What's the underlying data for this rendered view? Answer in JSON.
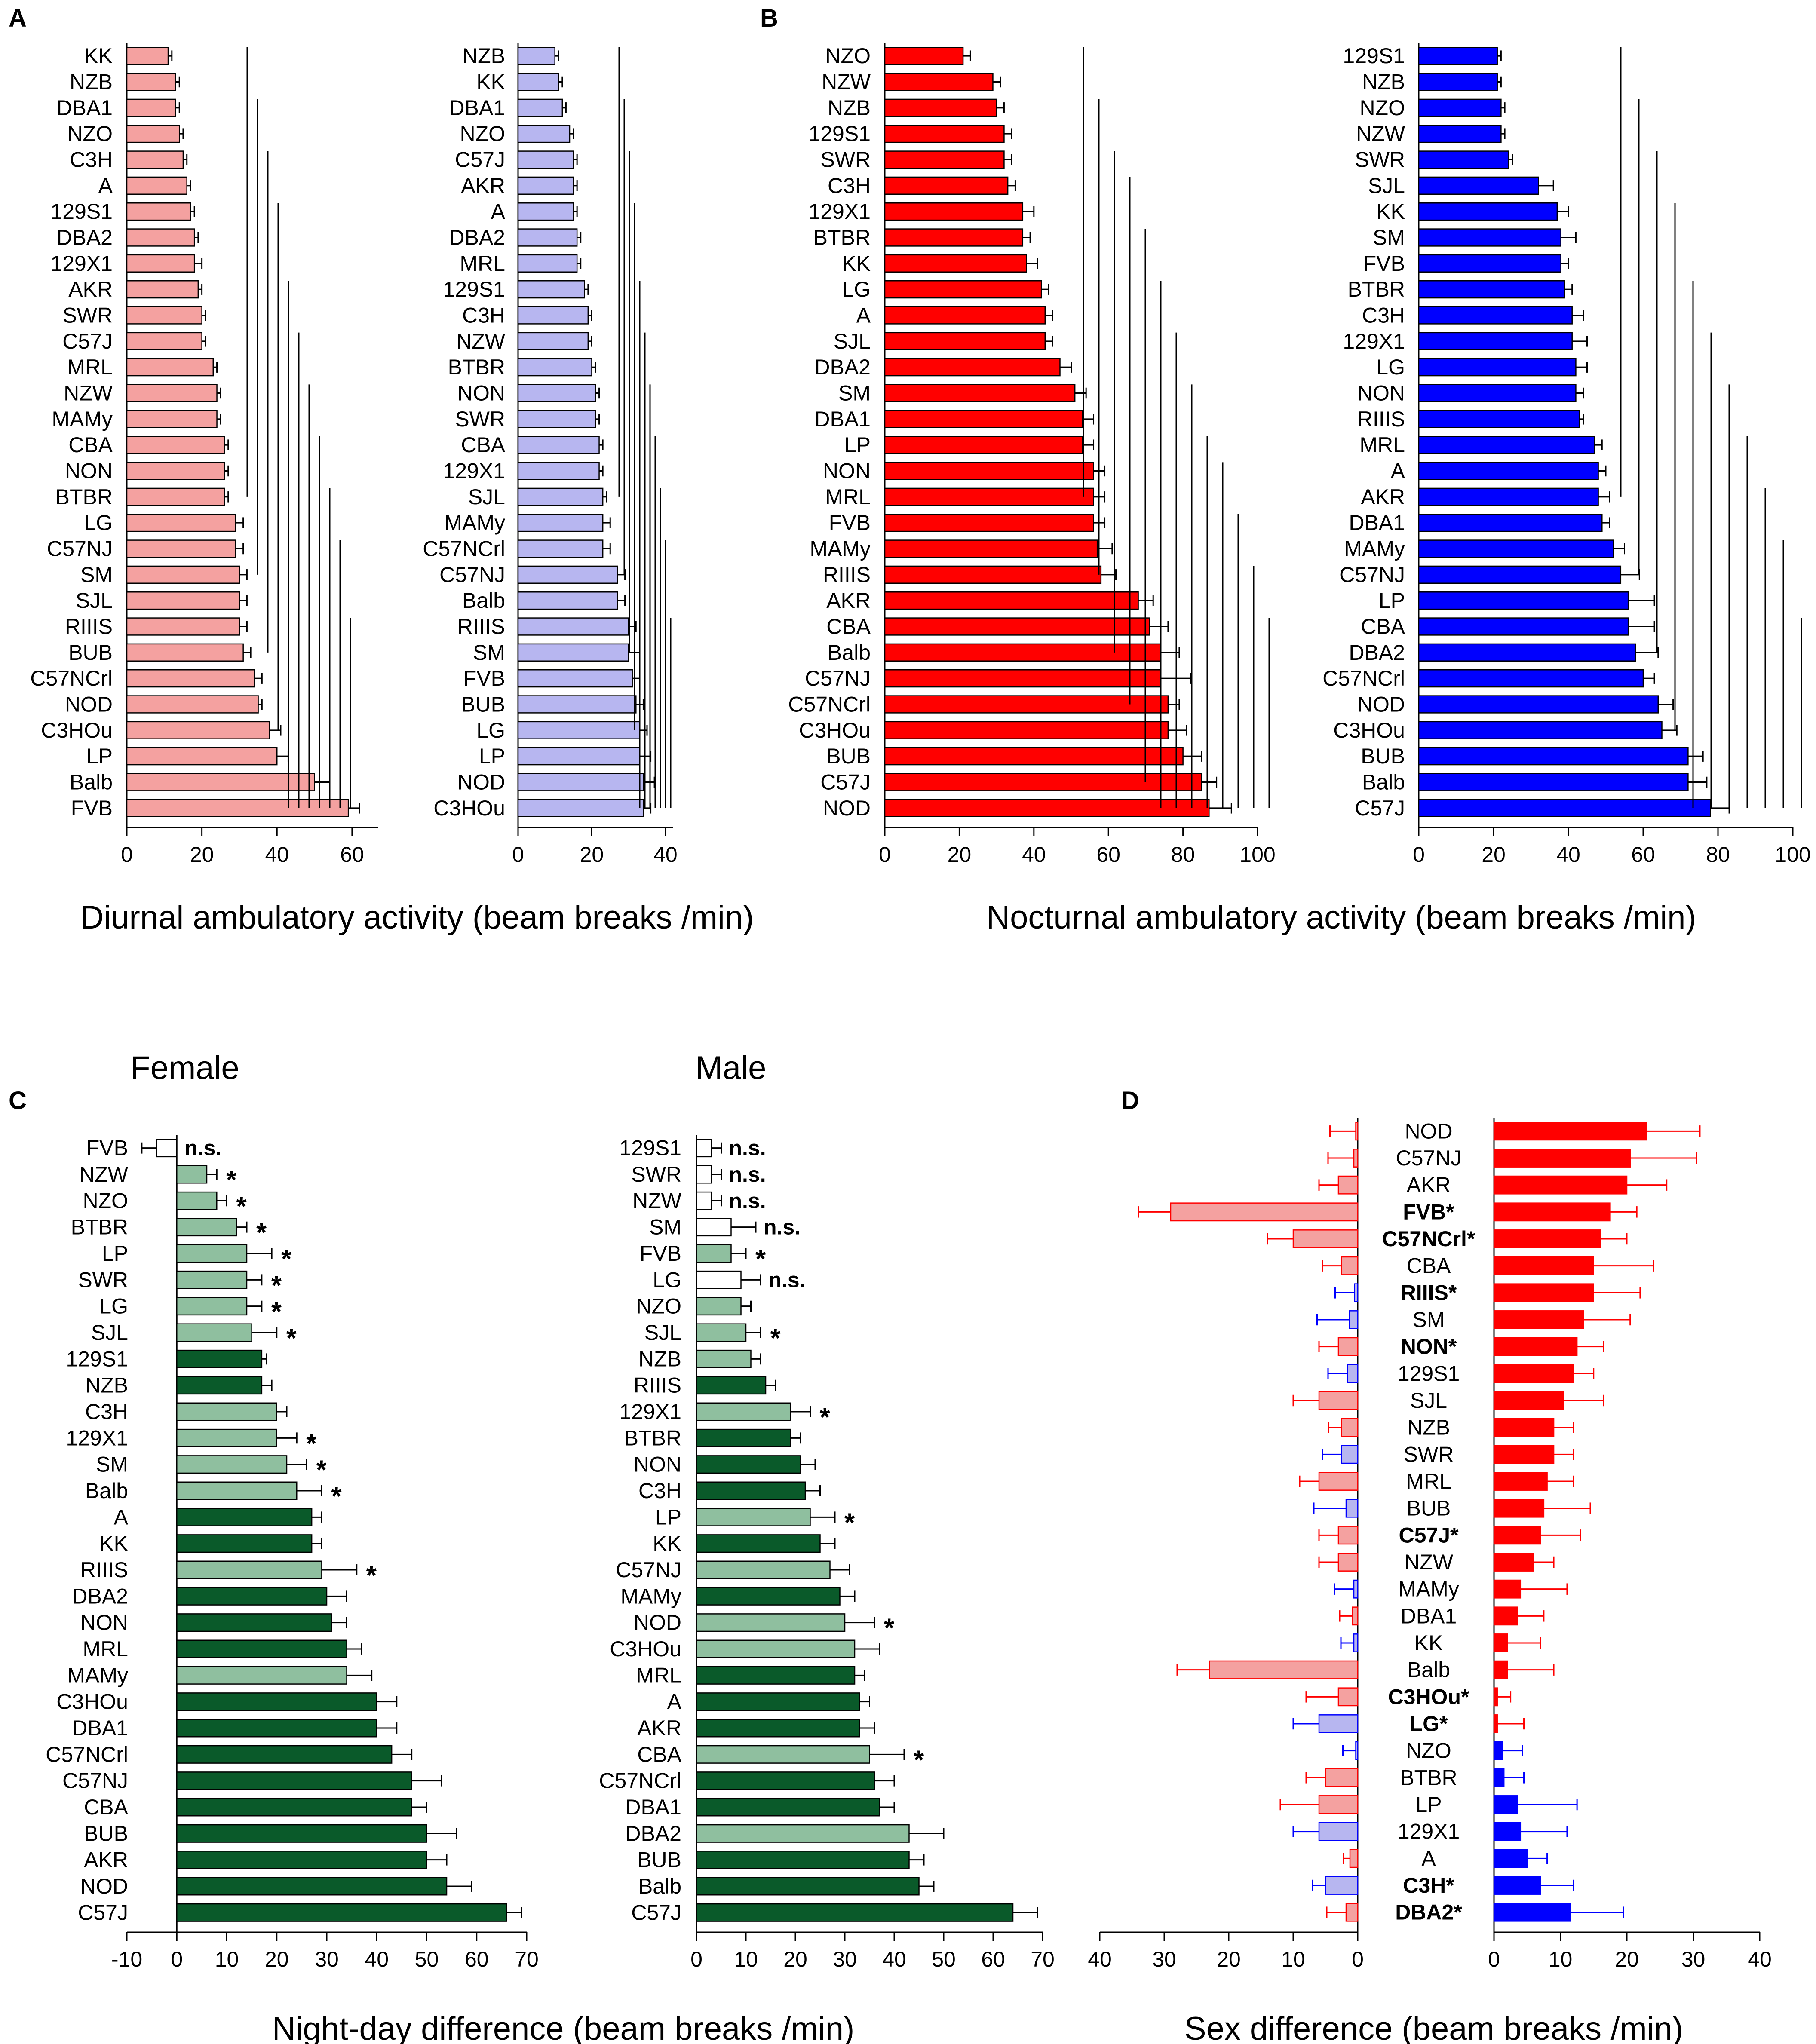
{
  "colors": {
    "female": "#f4a1a0",
    "male": "#b7b6f0",
    "female_dark": "#ff0000",
    "male_dark": "#0000ff",
    "green_dark": "#0a5a2a",
    "green_light": "#8fbf9f"
  },
  "figure": {
    "panel_labels": [
      "A",
      "B",
      "C",
      "D"
    ],
    "axis_titles": {
      "diurnal": "Diurnal ambulatory activity (beam breaks /min)",
      "nocturnal": "Nocturnal ambulatory activity (beam breaks /min)",
      "night_day": "Night-day difference (beam breaks /min)",
      "sex": "Sex difference (beam breaks /min)"
    },
    "headers": {
      "female": "Female",
      "male": "Male"
    }
  },
  "chart_data": [
    {
      "id": "A-female",
      "panel": "A",
      "type": "bar",
      "orientation": "horizontal",
      "color": "female",
      "xlim": [
        0,
        67
      ],
      "ticks": [
        0,
        20,
        40,
        60
      ],
      "categories": [
        "KK",
        "NZB",
        "DBA1",
        "NZO",
        "C3H",
        "A",
        "129S1",
        "DBA2",
        "129X1",
        "AKR",
        "SWR",
        "C57J",
        "MRL",
        "NZW",
        "MAMy",
        "CBA",
        "NON",
        "BTBR",
        "LG",
        "C57NJ",
        "SM",
        "SJL",
        "RIIIS",
        "BUB",
        "C57NCrl",
        "NOD",
        "C3HOu",
        "LP",
        "Balb",
        "FVB"
      ],
      "values": [
        11,
        13,
        13,
        14,
        15,
        16,
        17,
        18,
        18,
        19,
        20,
        20,
        23,
        24,
        24,
        26,
        26,
        26,
        29,
        29,
        30,
        30,
        30,
        31,
        34,
        35,
        38,
        40,
        50,
        59
      ],
      "errors": [
        1,
        1,
        1,
        1,
        1,
        1,
        1,
        1,
        2,
        1,
        1,
        1,
        1,
        1,
        1,
        1,
        1,
        1,
        2,
        2,
        2,
        2,
        2,
        2,
        2,
        1,
        3,
        3,
        4,
        3
      ],
      "significance_bracket_count": 11
    },
    {
      "id": "A-male",
      "panel": "A",
      "type": "bar",
      "orientation": "horizontal",
      "color": "male",
      "xlim": [
        0,
        42
      ],
      "ticks": [
        0,
        20,
        40
      ],
      "categories": [
        "NZB",
        "KK",
        "DBA1",
        "NZO",
        "C57J",
        "AKR",
        "A",
        "DBA2",
        "MRL",
        "129S1",
        "C3H",
        "NZW",
        "BTBR",
        "NON",
        "SWR",
        "CBA",
        "129X1",
        "SJL",
        "MAMy",
        "C57NCrl",
        "C57NJ",
        "Balb",
        "RIIIS",
        "SM",
        "FVB",
        "BUB",
        "LG",
        "LP",
        "NOD",
        "C3HOu"
      ],
      "values": [
        10,
        11,
        12,
        14,
        15,
        15,
        15,
        16,
        16,
        18,
        19,
        19,
        20,
        21,
        21,
        22,
        22,
        23,
        23,
        23,
        27,
        27,
        30,
        30,
        31,
        32,
        33,
        33,
        34,
        34
      ],
      "errors": [
        1,
        1,
        1,
        1,
        1,
        1,
        1,
        1,
        1,
        1,
        1,
        1,
        1,
        1,
        1,
        1,
        1,
        1,
        2,
        2,
        2,
        2,
        2,
        3,
        2,
        2,
        2,
        3,
        3,
        2
      ],
      "significance_bracket_count": 11
    },
    {
      "id": "B-female",
      "panel": "B",
      "type": "bar",
      "orientation": "horizontal",
      "color": "female_dark",
      "xlim": [
        0,
        100
      ],
      "ticks": [
        0,
        20,
        40,
        60,
        80,
        100
      ],
      "categories": [
        "NZO",
        "NZW",
        "NZB",
        "129S1",
        "SWR",
        "C3H",
        "129X1",
        "BTBR",
        "KK",
        "LG",
        "A",
        "SJL",
        "DBA2",
        "SM",
        "DBA1",
        "LP",
        "NON",
        "MRL",
        "FVB",
        "MAMy",
        "RIIIS",
        "AKR",
        "CBA",
        "Balb",
        "C57NJ",
        "C57NCrl",
        "C3HOu",
        "BUB",
        "C57J",
        "NOD"
      ],
      "values": [
        21,
        29,
        30,
        32,
        32,
        33,
        37,
        37,
        38,
        42,
        43,
        43,
        47,
        51,
        53,
        53,
        56,
        56,
        56,
        57,
        58,
        68,
        71,
        74,
        74,
        76,
        76,
        80,
        85,
        87
      ],
      "errors": [
        2,
        2,
        2,
        2,
        2,
        2,
        3,
        2,
        3,
        2,
        2,
        2,
        3,
        3,
        3,
        3,
        3,
        3,
        3,
        4,
        4,
        4,
        5,
        5,
        8,
        3,
        5,
        5,
        4,
        6
      ],
      "significance_bracket_count": 13
    },
    {
      "id": "B-male",
      "panel": "B",
      "type": "bar",
      "orientation": "horizontal",
      "color": "male_dark",
      "xlim": [
        0,
        100
      ],
      "ticks": [
        0,
        20,
        40,
        60,
        80,
        100
      ],
      "categories": [
        "129S1",
        "NZB",
        "NZO",
        "NZW",
        "SWR",
        "SJL",
        "KK",
        "SM",
        "FVB",
        "BTBR",
        "C3H",
        "129X1",
        "LG",
        "NON",
        "RIIIS",
        "MRL",
        "A",
        "AKR",
        "DBA1",
        "MAMy",
        "C57NJ",
        "LP",
        "CBA",
        "DBA2",
        "C57NCrl",
        "NOD",
        "C3HOu",
        "BUB",
        "Balb",
        "C57J"
      ],
      "values": [
        21,
        21,
        22,
        22,
        24,
        32,
        37,
        38,
        38,
        39,
        41,
        41,
        42,
        42,
        43,
        47,
        48,
        48,
        49,
        52,
        54,
        56,
        56,
        58,
        60,
        64,
        65,
        72,
        72,
        78
      ],
      "errors": [
        1,
        1,
        1,
        1,
        1,
        4,
        3,
        4,
        2,
        2,
        3,
        4,
        3,
        2,
        1,
        2,
        2,
        3,
        2,
        3,
        5,
        7,
        7,
        6,
        3,
        4,
        4,
        4,
        5,
        5
      ],
      "significance_bracket_count": 11
    },
    {
      "id": "C-female",
      "panel": "C",
      "type": "bar",
      "orientation": "horizontal",
      "xlim": [
        -10,
        70
      ],
      "ticks": [
        -10,
        0,
        10,
        20,
        30,
        40,
        50,
        60,
        70
      ],
      "categories": [
        "FVB",
        "NZW",
        "NZO",
        "BTBR",
        "LP",
        "SWR",
        "LG",
        "SJL",
        "129S1",
        "NZB",
        "C3H",
        "129X1",
        "SM",
        "Balb",
        "A",
        "KK",
        "RIIIS",
        "DBA2",
        "NON",
        "MRL",
        "MAMy",
        "C3HOu",
        "DBA1",
        "C57NCrl",
        "C57NJ",
        "CBA",
        "BUB",
        "AKR",
        "NOD",
        "C57J"
      ],
      "values": [
        -4,
        6,
        8,
        12,
        14,
        14,
        14,
        15,
        17,
        17,
        20,
        20,
        22,
        24,
        27,
        27,
        29,
        30,
        31,
        34,
        34,
        40,
        40,
        43,
        47,
        47,
        50,
        50,
        54,
        66
      ],
      "errors": [
        3,
        2,
        2,
        2,
        5,
        3,
        3,
        5,
        1,
        2,
        2,
        4,
        4,
        5,
        2,
        2,
        7,
        4,
        3,
        3,
        5,
        4,
        4,
        4,
        6,
        3,
        6,
        4,
        5,
        3
      ],
      "shade": [
        "white",
        "light",
        "light",
        "light",
        "light",
        "light",
        "light",
        "light",
        "dark",
        "dark",
        "light",
        "light",
        "light",
        "light",
        "dark",
        "dark",
        "light",
        "dark",
        "dark",
        "dark",
        "light",
        "dark",
        "dark",
        "dark",
        "dark",
        "dark",
        "dark",
        "dark",
        "dark",
        "dark"
      ],
      "annotations": [
        "n.s.",
        "*",
        "*",
        "*",
        "*",
        "*",
        "*",
        "*",
        "",
        "",
        "",
        "*",
        "*",
        "*",
        "",
        "",
        "*",
        "",
        "",
        "",
        "",
        "",
        "",
        "",
        "",
        "",
        "",
        "",
        "",
        ""
      ]
    },
    {
      "id": "C-male",
      "panel": "C",
      "type": "bar",
      "orientation": "horizontal",
      "xlim": [
        0,
        70
      ],
      "ticks": [
        0,
        10,
        20,
        30,
        40,
        50,
        60,
        70
      ],
      "categories": [
        "129S1",
        "SWR",
        "NZW",
        "SM",
        "FVB",
        "LG",
        "NZO",
        "SJL",
        "NZB",
        "RIIIS",
        "129X1",
        "BTBR",
        "NON",
        "C3H",
        "LP",
        "KK",
        "C57NJ",
        "MAMy",
        "NOD",
        "C3HOu",
        "MRL",
        "A",
        "AKR",
        "CBA",
        "C57NCrl",
        "DBA1",
        "DBA2",
        "BUB",
        "Balb",
        "C57J"
      ],
      "values": [
        3,
        3,
        3,
        7,
        7,
        9,
        9,
        10,
        11,
        14,
        19,
        19,
        21,
        22,
        23,
        25,
        27,
        29,
        30,
        32,
        32,
        33,
        33,
        35,
        36,
        37,
        43,
        43,
        45,
        64
      ],
      "errors": [
        2,
        2,
        2,
        5,
        3,
        4,
        2,
        3,
        2,
        2,
        4,
        2,
        3,
        3,
        5,
        3,
        4,
        3,
        6,
        5,
        2,
        2,
        3,
        7,
        4,
        3,
        7,
        3,
        3,
        5
      ],
      "shade": [
        "white",
        "white",
        "white",
        "white",
        "light",
        "white",
        "light",
        "light",
        "light",
        "dark",
        "light",
        "dark",
        "dark",
        "dark",
        "light",
        "dark",
        "light",
        "dark",
        "light",
        "light",
        "dark",
        "dark",
        "dark",
        "light",
        "dark",
        "dark",
        "light",
        "dark",
        "dark",
        "dark"
      ],
      "annotations": [
        "n.s.",
        "n.s.",
        "n.s.",
        "n.s.",
        "*",
        "n.s.",
        "",
        "*",
        "",
        "",
        "*",
        "",
        "",
        "",
        "*",
        "",
        "",
        "",
        "*",
        "",
        "",
        "",
        "",
        "*",
        "",
        "",
        "",
        "",
        "",
        ""
      ]
    },
    {
      "id": "D-left",
      "panel": "D",
      "type": "bar",
      "orientation": "horizontal",
      "description": "negative-direction sex difference",
      "xlim": [
        40,
        0
      ],
      "ticks": [
        40,
        30,
        20,
        10,
        0
      ],
      "categories": [
        "NOD",
        "C57NJ",
        "AKR",
        "FVB",
        "C57NCrl",
        "CBA",
        "RIIIS",
        "SM",
        "NON",
        "129S1",
        "SJL",
        "NZB",
        "SWR",
        "MRL",
        "BUB",
        "C57J",
        "NZW",
        "MAMy",
        "DBA1",
        "KK",
        "Balb",
        "C3HOu",
        "LG",
        "NZO",
        "BTBR",
        "LP",
        "129X1",
        "A",
        "C3H",
        "DBA2"
      ],
      "values": [
        0.3,
        0.6,
        3,
        29,
        10,
        2.5,
        0.5,
        1.3,
        3,
        1.6,
        6,
        2.5,
        2.5,
        6,
        1.8,
        3,
        3,
        0.6,
        0.8,
        0.6,
        23,
        3,
        6,
        0.3,
        5,
        6,
        6,
        1.2,
        5,
        1.8
      ],
      "errors": [
        4,
        4,
        3,
        5,
        4,
        3,
        3,
        5,
        3,
        3,
        4,
        2,
        3,
        3,
        5,
        3,
        3,
        3,
        2,
        2,
        5,
        5,
        4,
        2,
        3,
        6,
        4,
        1,
        2,
        3
      ],
      "color_group": [
        "female",
        "female",
        "female",
        "female",
        "female",
        "female",
        "male",
        "male",
        "female",
        "male",
        "female",
        "female",
        "male",
        "female",
        "male",
        "female",
        "female",
        "male",
        "female",
        "male",
        "female",
        "female",
        "male",
        "male",
        "female",
        "female",
        "male",
        "female",
        "male",
        "female"
      ]
    },
    {
      "id": "D-right",
      "panel": "D",
      "type": "bar",
      "orientation": "horizontal",
      "description": "positive-direction sex difference",
      "xlim": [
        0,
        40
      ],
      "ticks": [
        0,
        10,
        20,
        30,
        40
      ],
      "categories": [
        "NOD",
        "C57NJ",
        "AKR",
        "FVB",
        "C57NCrl",
        "CBA",
        "RIIIS",
        "SM",
        "NON",
        "129S1",
        "SJL",
        "NZB",
        "SWR",
        "MRL",
        "BUB",
        "C57J",
        "NZW",
        "MAMy",
        "DBA1",
        "KK",
        "Balb",
        "C3HOu",
        "LG",
        "NZO",
        "BTBR",
        "LP",
        "129X1",
        "A",
        "C3H",
        "DBA2"
      ],
      "values": [
        23,
        20.5,
        20,
        17.5,
        16,
        15,
        15,
        13.5,
        12.5,
        12,
        10.5,
        9,
        9,
        8,
        7.5,
        7,
        6,
        4,
        3.5,
        2,
        2,
        0.5,
        0.5,
        1.3,
        1.5,
        3.5,
        4,
        5,
        7,
        11.5
      ],
      "errors": [
        8,
        10,
        6,
        4,
        4,
        9,
        7,
        7,
        4,
        3,
        6,
        3,
        3,
        4,
        7,
        6,
        3,
        7,
        4,
        5,
        7,
        2,
        4,
        3,
        3,
        9,
        7,
        3,
        5,
        8
      ],
      "color_group": [
        "female",
        "female",
        "female",
        "female",
        "female",
        "female",
        "female",
        "female",
        "female",
        "female",
        "female",
        "female",
        "female",
        "female",
        "female",
        "female",
        "female",
        "female",
        "female",
        "female",
        "female",
        "female",
        "female",
        "male",
        "male",
        "male",
        "male",
        "male",
        "male",
        "male"
      ],
      "bold_labels": [
        "FVB*",
        "C57NCrl*",
        "RIIIS*",
        "NON*",
        "C57J*",
        "C3HOu*",
        "LG*",
        "C3H*",
        "DBA2*"
      ]
    }
  ]
}
